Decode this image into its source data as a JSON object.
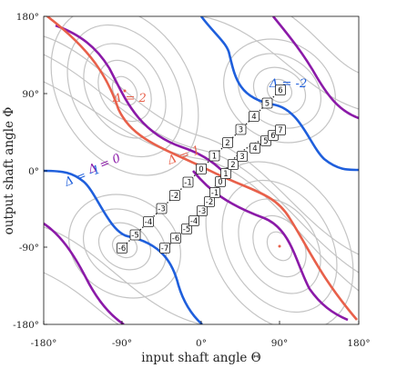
{
  "axes": {
    "xlabel": "input shaft angle Θ",
    "ylabel": "output shaft angle Φ",
    "xticks": [
      "-180°",
      "-90°",
      "0°",
      "90°",
      "180°"
    ],
    "yticks": [
      "180°",
      "90°",
      "0°",
      "-90°",
      "-180°"
    ]
  },
  "contour_labels": [
    {
      "text": "Δ = 2",
      "color": "#e8604a"
    },
    {
      "text": "Δ = -2",
      "color": "#1f5fdc"
    },
    {
      "text": "Δ = 1",
      "color": "#e8604a"
    },
    {
      "text": "Δ = 0",
      "color": "#8b1aa8"
    },
    {
      "text": "Δ = -1",
      "color": "#1f5fdc"
    }
  ],
  "path_a_labels": [
    "-6",
    "-5",
    "-4",
    "-3",
    "-2",
    "-1",
    "0",
    "1",
    "2",
    "3",
    "4",
    "5",
    "6"
  ],
  "path_b_labels": [
    "-7",
    "-6",
    "-5",
    "-4",
    "-3",
    "-2",
    "-1",
    "0",
    "1",
    "2",
    "3",
    "4",
    "5",
    "6",
    "7"
  ],
  "colors": {
    "background_contours": "#c4c4c4",
    "delta_plus": "#e8604a",
    "delta_zero": "#8b1aa8",
    "delta_minus": "#1f5fdc",
    "frame": "#111111"
  }
}
